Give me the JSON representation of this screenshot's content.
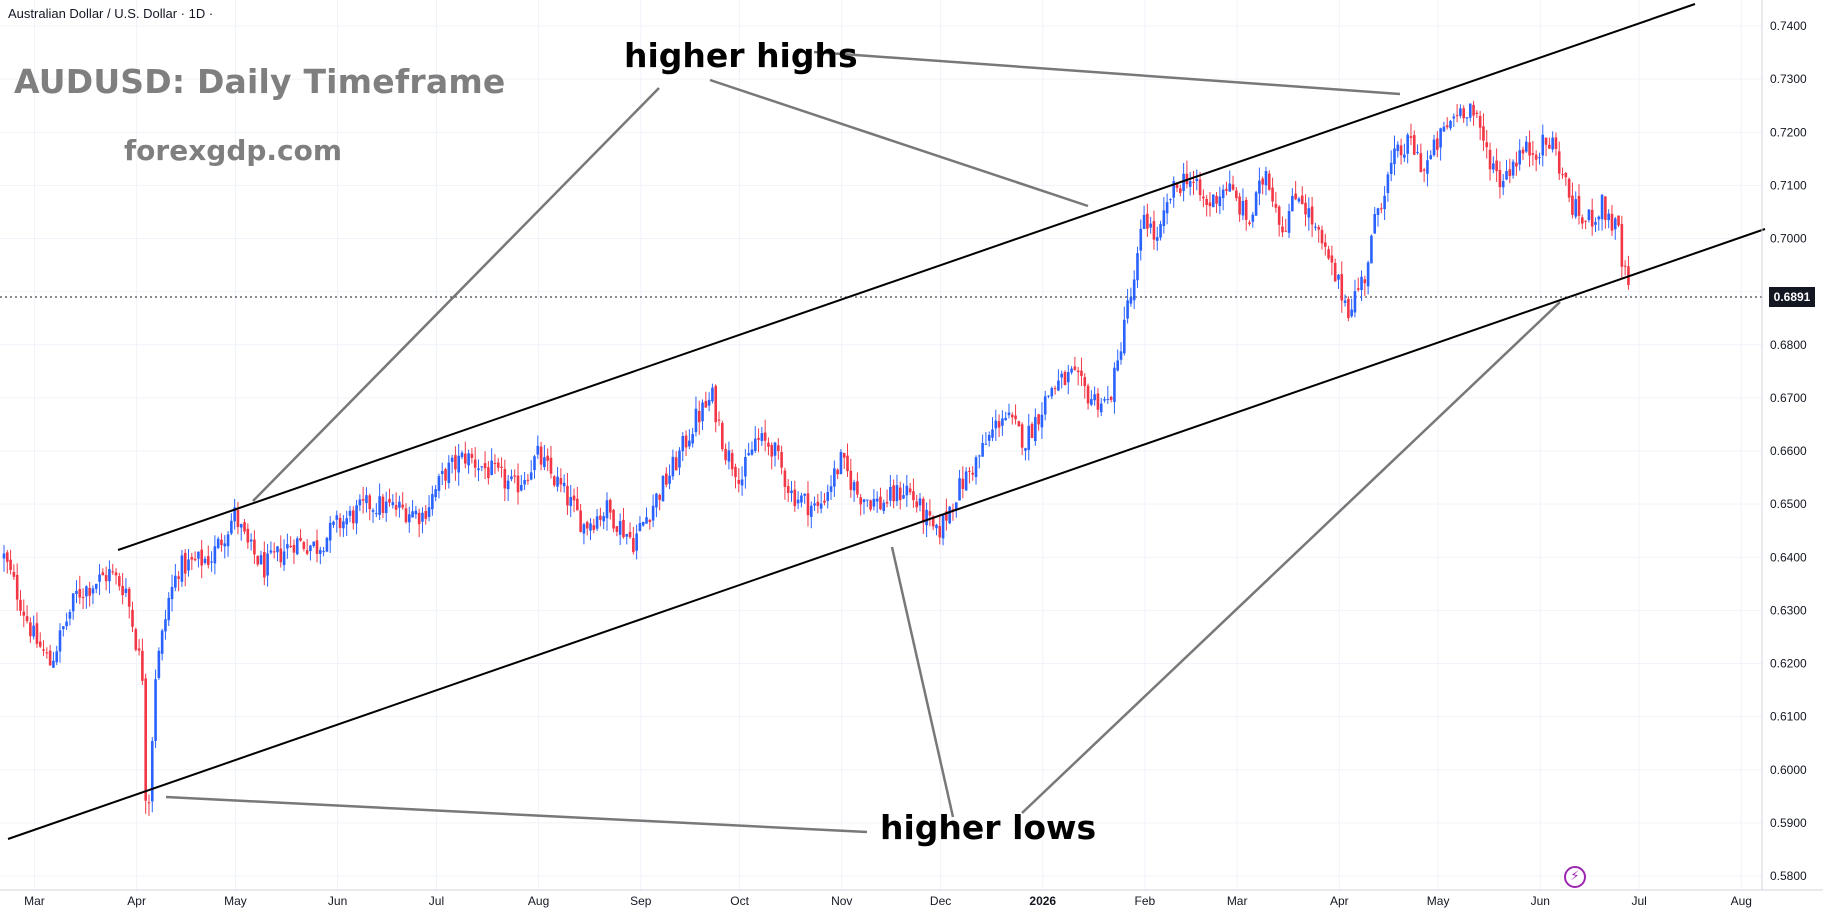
{
  "symbol_header": "Australian Dollar / U.S. Dollar · 1D ·",
  "title": "AUDUSD: Daily Timeframe",
  "subtitle": "forexgdp.com",
  "annotations": {
    "higher_highs": "higher highs",
    "higher_lows": "higher lows"
  },
  "current_price_label": "0.6891",
  "bolt_icon": "⚡",
  "colors": {
    "up": "#2962ff",
    "down": "#f23645",
    "trendline": "#000000",
    "pointer": "#787878",
    "axis_text": "#131722"
  },
  "chart_data": {
    "type": "candlestick",
    "timeframe": "1D",
    "y_range": [
      0.578,
      0.742
    ],
    "y_ticks": [
      "0.7400",
      "0.7300",
      "0.7200",
      "0.7100",
      "0.7000",
      "0.6900",
      "0.6800",
      "0.6700",
      "0.6600",
      "0.6500",
      "0.6400",
      "0.6300",
      "0.6200",
      "0.6100",
      "0.6000",
      "0.5900",
      "0.5800"
    ],
    "x_ticks": [
      "Mar",
      "Apr",
      "May",
      "Jun",
      "Jul",
      "Aug",
      "Sep",
      "Oct",
      "Nov",
      "Dec",
      "2026",
      "Feb",
      "Mar",
      "Apr",
      "May",
      "Jun",
      "Jul",
      "Aug"
    ],
    "grid": true,
    "current_price": 0.6891,
    "trend": "ascending channel",
    "price_path": [
      [
        "Feb 24",
        0.64
      ],
      [
        "Mar 5",
        0.625
      ],
      [
        "Mar 10",
        0.62
      ],
      [
        "Mar 18",
        0.633
      ],
      [
        "Mar 28",
        0.637
      ],
      [
        "Apr 2",
        0.634
      ],
      [
        "Apr 7",
        0.618
      ],
      [
        "Apr 8",
        0.596
      ],
      [
        "Apr 9",
        0.595
      ],
      [
        "Apr 11",
        0.618
      ],
      [
        "Apr 15",
        0.632
      ],
      [
        "Apr 18",
        0.638
      ],
      [
        "Apr 28",
        0.64
      ],
      [
        "May 5",
        0.648
      ],
      [
        "May 9",
        0.642
      ],
      [
        "May 14",
        0.638
      ],
      [
        "May 23",
        0.643
      ],
      [
        "May 30",
        0.642
      ],
      [
        "Jun 5",
        0.646
      ],
      [
        "Jun 15",
        0.65
      ],
      [
        "Jun 25",
        0.649
      ],
      [
        "Jul 1",
        0.648
      ],
      [
        "Jul 8",
        0.656
      ],
      [
        "Jul 14",
        0.659
      ],
      [
        "Jul 22",
        0.656
      ],
      [
        "Jul 29",
        0.653
      ],
      [
        "Aug 5",
        0.659
      ],
      [
        "Aug 12",
        0.653
      ],
      [
        "Aug 19",
        0.646
      ],
      [
        "Aug 26",
        0.649
      ],
      [
        "Sep 3",
        0.643
      ],
      [
        "Sep 9",
        0.65
      ],
      [
        "Sep 16",
        0.658
      ],
      [
        "Sep 22",
        0.666
      ],
      [
        "Sep 27",
        0.67
      ],
      [
        "Oct 1",
        0.66
      ],
      [
        "Oct 6",
        0.655
      ],
      [
        "Oct 10",
        0.662
      ],
      [
        "Oct 15",
        0.661
      ],
      [
        "Oct 21",
        0.652
      ],
      [
        "Oct 29",
        0.649
      ],
      [
        "Nov 5",
        0.658
      ],
      [
        "Nov 10",
        0.652
      ],
      [
        "Nov 17",
        0.65
      ],
      [
        "Nov 25",
        0.653
      ],
      [
        "Dec 1",
        0.647
      ],
      [
        "Dec 4",
        0.644
      ],
      [
        "Dec 10",
        0.652
      ],
      [
        "Dec 17",
        0.659
      ],
      [
        "Dec 24",
        0.667
      ],
      [
        "Dec 31",
        0.662
      ],
      [
        "Jan 8",
        0.672
      ],
      [
        "Jan 14",
        0.674
      ],
      [
        "Jan 20",
        0.67
      ],
      [
        "Jan 25",
        0.669
      ],
      [
        "Jan 28",
        0.676
      ],
      [
        "Jan 30",
        0.685
      ],
      [
        "Feb 2",
        0.691
      ],
      [
        "Feb 5",
        0.705
      ],
      [
        "Feb 9",
        0.699
      ],
      [
        "Feb 13",
        0.708
      ],
      [
        "Feb 18",
        0.712
      ],
      [
        "Feb 24",
        0.706
      ],
      [
        "Mar 2",
        0.71
      ],
      [
        "Mar 9",
        0.703
      ],
      [
        "Mar 14",
        0.713
      ],
      [
        "Mar 19",
        0.702
      ],
      [
        "Mar 24",
        0.709
      ],
      [
        "Mar 30",
        0.7
      ],
      [
        "Apr 3",
        0.694
      ],
      [
        "Apr 8",
        0.687
      ],
      [
        "Apr 13",
        0.693
      ],
      [
        "Apr 17",
        0.706
      ],
      [
        "Apr 22",
        0.715
      ],
      [
        "Apr 27",
        0.718
      ],
      [
        "May 1",
        0.713
      ],
      [
        "May 6",
        0.719
      ],
      [
        "May 11",
        0.724
      ],
      [
        "May 15",
        0.725
      ],
      [
        "May 19",
        0.718
      ],
      [
        "May 24",
        0.711
      ],
      [
        "May 30",
        0.716
      ],
      [
        "Jun 4",
        0.717
      ],
      [
        "Jun 9",
        0.718
      ],
      [
        "Jun 15",
        0.706
      ],
      [
        "Jun 19",
        0.703
      ],
      [
        "Jun 24",
        0.706
      ],
      [
        "Jun 29",
        0.701
      ],
      [
        "Jun 30",
        0.695
      ],
      [
        "Jul 3",
        0.6891
      ]
    ]
  }
}
